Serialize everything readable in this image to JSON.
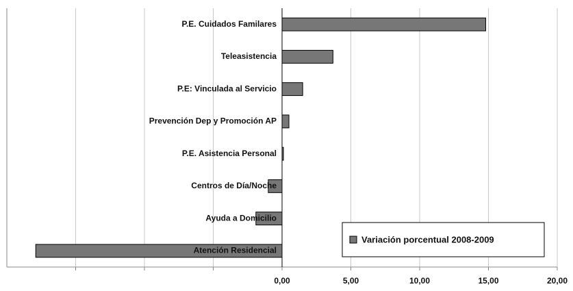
{
  "chart_data": {
    "type": "bar",
    "orientation": "horizontal",
    "categories": [
      "P.E. Cuidados Familares",
      "Teleasistencia",
      "P.E: Vinculada al Servicio",
      "Prevención  Dep y Promoción AP",
      "P.E. Asistencia Personal",
      "Centros de Día/Noche",
      "Ayuda a Domicilio",
      "Atención Residencial"
    ],
    "series": [
      {
        "name": "Variación porcentual 2008-2009",
        "color": "#777777",
        "values": [
          14.8,
          3.7,
          1.5,
          0.5,
          0.1,
          -1.0,
          -1.9,
          -17.9
        ]
      }
    ],
    "xlim": [
      -20,
      20
    ],
    "xticks": [
      -15,
      -10,
      -5,
      {
        "value": 0,
        "label": "0,00"
      },
      {
        "value": 5,
        "label": "5,00"
      },
      {
        "value": 10,
        "label": "10,00"
      },
      {
        "value": 15,
        "label": "15,00"
      },
      {
        "value": 20,
        "label": "20,00"
      }
    ],
    "grid": true,
    "legend": "lower right"
  }
}
